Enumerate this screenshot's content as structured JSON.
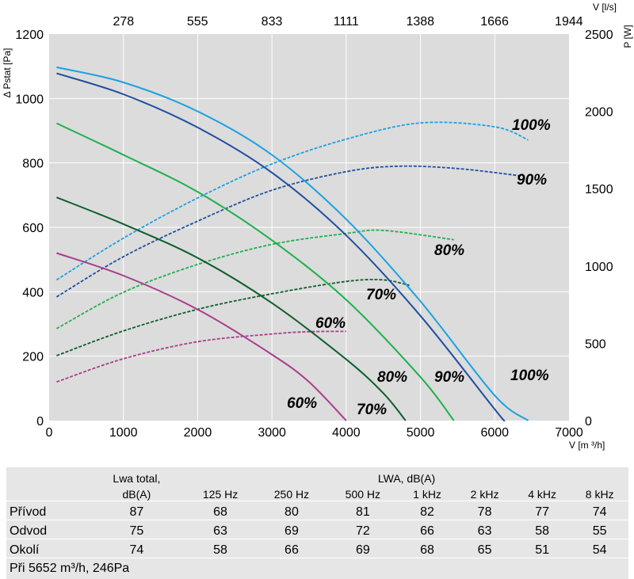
{
  "chart_data": {
    "type": "line",
    "xlabel": "V [m ³/h]",
    "x2label": "V [l/s]",
    "ylabel": "Δ Pstat [Pa]",
    "y2label": "P [W]",
    "xlim": [
      0,
      7000
    ],
    "ylim": [
      0,
      1200
    ],
    "y2lim": [
      0,
      2500
    ],
    "x_ticks": [
      0,
      1000,
      2000,
      3000,
      4000,
      5000,
      6000,
      7000
    ],
    "x2_ticks": [
      278,
      555,
      833,
      1111,
      1388,
      1666,
      1944
    ],
    "y_ticks": [
      0,
      200,
      400,
      600,
      800,
      1000,
      1200
    ],
    "y2_ticks": [
      0,
      500,
      1000,
      1500,
      2000,
      2500
    ],
    "grid": true,
    "pressure_curves": [
      {
        "label": "100%",
        "color": "#1ba1e2",
        "points": [
          [
            100,
            1097
          ],
          [
            1000,
            1050
          ],
          [
            2000,
            960
          ],
          [
            3000,
            825
          ],
          [
            4000,
            625
          ],
          [
            5000,
            370
          ],
          [
            6000,
            78
          ],
          [
            6450,
            0
          ]
        ]
      },
      {
        "label": "90%",
        "color": "#1f4fa0",
        "points": [
          [
            100,
            1078
          ],
          [
            1000,
            1013
          ],
          [
            2000,
            910
          ],
          [
            3000,
            770
          ],
          [
            4000,
            575
          ],
          [
            5000,
            325
          ],
          [
            6000,
            35
          ],
          [
            6130,
            0
          ]
        ]
      },
      {
        "label": "80%",
        "color": "#1cb14d",
        "points": [
          [
            100,
            923
          ],
          [
            1000,
            825
          ],
          [
            2000,
            710
          ],
          [
            3000,
            560
          ],
          [
            4000,
            375
          ],
          [
            5000,
            135
          ],
          [
            5450,
            0
          ]
        ]
      },
      {
        "label": "70%",
        "color": "#0d5e2e",
        "points": [
          [
            100,
            693
          ],
          [
            1000,
            610
          ],
          [
            2000,
            505
          ],
          [
            3000,
            365
          ],
          [
            4000,
            190
          ],
          [
            4500,
            85
          ],
          [
            4800,
            0
          ]
        ]
      },
      {
        "label": "60%",
        "color": "#a83e8c",
        "points": [
          [
            100,
            520
          ],
          [
            1000,
            450
          ],
          [
            2000,
            345
          ],
          [
            3000,
            205
          ],
          [
            3500,
            120
          ],
          [
            4000,
            0
          ]
        ]
      }
    ],
    "power_curves": [
      {
        "label": "100%",
        "color": "#1ba1e2",
        "points": [
          [
            100,
            910
          ],
          [
            1000,
            1180
          ],
          [
            2000,
            1440
          ],
          [
            3000,
            1660
          ],
          [
            4000,
            1820
          ],
          [
            5000,
            1925
          ],
          [
            6000,
            1900
          ],
          [
            6450,
            1815
          ]
        ]
      },
      {
        "label": "90%",
        "color": "#1f4fa0",
        "points": [
          [
            100,
            800
          ],
          [
            1000,
            1060
          ],
          [
            2000,
            1290
          ],
          [
            3000,
            1490
          ],
          [
            4000,
            1610
          ],
          [
            4700,
            1645
          ],
          [
            5500,
            1630
          ],
          [
            6400,
            1580
          ]
        ]
      },
      {
        "label": "80%",
        "color": "#1cb14d",
        "points": [
          [
            100,
            595
          ],
          [
            1000,
            830
          ],
          [
            2000,
            1010
          ],
          [
            3000,
            1140
          ],
          [
            4000,
            1210
          ],
          [
            4500,
            1230
          ],
          [
            5450,
            1170
          ]
        ]
      },
      {
        "label": "70%",
        "color": "#0d5e2e",
        "points": [
          [
            100,
            420
          ],
          [
            1000,
            580
          ],
          [
            2000,
            720
          ],
          [
            3000,
            820
          ],
          [
            4000,
            900
          ],
          [
            4500,
            910
          ],
          [
            4850,
            875
          ]
        ]
      },
      {
        "label": "60%",
        "color": "#a83e8c",
        "points": [
          [
            100,
            250
          ],
          [
            1000,
            400
          ],
          [
            2000,
            510
          ],
          [
            3000,
            560
          ],
          [
            3500,
            575
          ],
          [
            4000,
            577
          ]
        ]
      }
    ],
    "curve_labels": [
      {
        "text": "100%",
        "color": "#000"
      },
      {
        "text": "90%",
        "color": "#000"
      },
      {
        "text": "80%",
        "color": "#000"
      },
      {
        "text": "70%",
        "color": "#000"
      },
      {
        "text": "60%",
        "color": "#000"
      },
      {
        "text": "100%",
        "color": "#000"
      },
      {
        "text": "90%",
        "color": "#000"
      },
      {
        "text": "80%",
        "color": "#000"
      },
      {
        "text": "70%",
        "color": "#000"
      },
      {
        "text": "60%",
        "color": "#000"
      }
    ]
  },
  "table": {
    "header_lwa_total_1": "Lwa total,",
    "header_lwa_total_2": "dB(A)",
    "header_lwa_group": "LWA, dB(A)",
    "bands": [
      "125 Hz",
      "250 Hz",
      "500 Hz",
      "1 kHz",
      "2 kHz",
      "4 kHz",
      "8 kHz"
    ],
    "rows": [
      {
        "label": "Přívod",
        "total": "87",
        "values": [
          "68",
          "80",
          "81",
          "82",
          "78",
          "77",
          "74"
        ]
      },
      {
        "label": "Odvod",
        "total": "75",
        "values": [
          "63",
          "69",
          "72",
          "66",
          "63",
          "58",
          "55"
        ]
      },
      {
        "label": "Okolí",
        "total": "74",
        "values": [
          "58",
          "66",
          "69",
          "68",
          "65",
          "51",
          "54"
        ]
      }
    ],
    "footnote": "Při 5652 m³/h, 246Pa"
  }
}
